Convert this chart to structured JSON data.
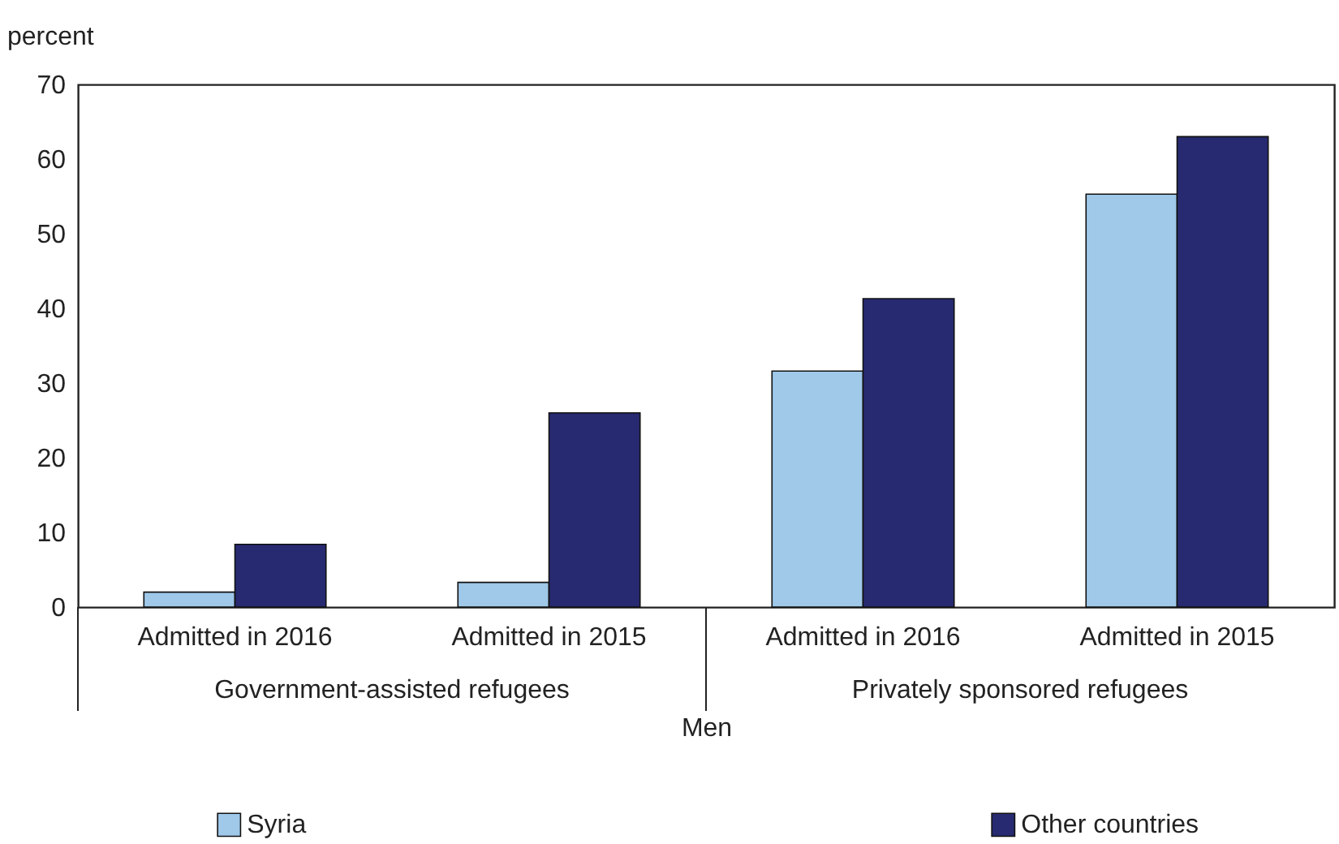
{
  "chart_data": {
    "type": "bar",
    "ylabel": "percent",
    "xlabel": "Men",
    "categories": [
      "Admitted in 2016",
      "Admitted in 2015",
      "Admitted in 2016",
      "Admitted in 2015"
    ],
    "annotations": [
      "Government-assisted refugees",
      "Privately sponsored refugees"
    ],
    "series": [
      {
        "name": "Syria",
        "color": "#9fc8e9",
        "values": [
          2.0,
          3.3,
          31.6,
          55.3
        ]
      },
      {
        "name": "Other countries",
        "color": "#272a70",
        "values": [
          8.4,
          26.0,
          41.3,
          63.0
        ]
      }
    ],
    "ylim": [
      0,
      70
    ],
    "yticks": [
      0,
      10,
      20,
      30,
      40,
      50,
      60,
      70
    ],
    "legend": "bottom"
  }
}
